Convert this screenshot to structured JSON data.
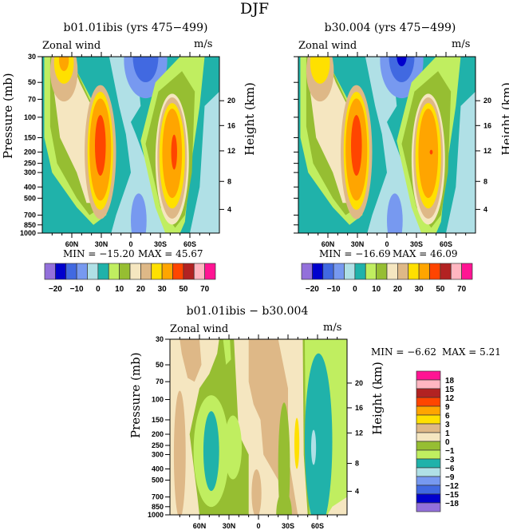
{
  "main_title": "DJF",
  "panels": [
    {
      "id": "p1",
      "title": "b01.01ibis (yrs 475−499)",
      "variable": "Zonal wind",
      "units": "m/s",
      "min_label": "MIN = −15.20",
      "max_label": "MAX =  45.67"
    },
    {
      "id": "p2",
      "title": "b30.004 (yrs 475−499)",
      "variable": "Zonal wind",
      "units": "m/s",
      "min_label": "MIN = −16.69",
      "max_label": "MAX =  46.09"
    },
    {
      "id": "p3",
      "title": "b01.01ibis − b30.004",
      "variable": "Zonal wind",
      "units": "m/s",
      "min_label": "MIN =  −6.62",
      "max_label": "MAX =   5.21"
    }
  ],
  "axes": {
    "ylabel_left": "Pressure (mb)",
    "ylabel_right": "Height (km)"
  },
  "chart_data": [
    {
      "type": "heatmap",
      "title": "b01.01ibis (yrs 475-499)",
      "subtitle": "Zonal wind (m/s), DJF",
      "xlabel": "Latitude",
      "ylabel": "Pressure (mb)",
      "ylabel_right": "Height (km)",
      "x_ticks": [
        "60N",
        "30N",
        "0",
        "30S",
        "60S"
      ],
      "x_tick_values": [
        60,
        30,
        0,
        -30,
        -60
      ],
      "xlim": [
        90,
        -90
      ],
      "y_ticks": [
        30,
        50,
        70,
        100,
        150,
        200,
        250,
        300,
        400,
        500,
        700,
        850,
        1000
      ],
      "ylim": [
        1000,
        30
      ],
      "y_scale": "log",
      "y_right_ticks": [
        4,
        8,
        12,
        16,
        20
      ],
      "min": -15.2,
      "max": 45.67,
      "colorbar_labels": [
        "-20",
        "-10",
        "0",
        "10",
        "20",
        "30",
        "50",
        "70"
      ],
      "features": [
        {
          "kind": "jet",
          "lat": 30,
          "p": 180,
          "peak_level": "50-70"
        },
        {
          "kind": "jet",
          "lat": -42,
          "p": 190,
          "peak_level": "50-70"
        },
        {
          "kind": "easterly_min",
          "lat": -15,
          "p": 30,
          "level": "-10 to -15"
        }
      ]
    },
    {
      "type": "heatmap",
      "title": "b30.004 (yrs 475-499)",
      "subtitle": "Zonal wind (m/s), DJF",
      "xlabel": "Latitude",
      "ylabel": "Pressure (mb)",
      "ylabel_right": "Height (km)",
      "x_ticks": [
        "60N",
        "30N",
        "0",
        "30S",
        "60S"
      ],
      "x_tick_values": [
        60,
        30,
        0,
        -30,
        -60
      ],
      "xlim": [
        90,
        -90
      ],
      "y_ticks": [
        30,
        50,
        70,
        100,
        150,
        200,
        250,
        300,
        400,
        500,
        700,
        850,
        1000
      ],
      "ylim": [
        1000,
        30
      ],
      "y_scale": "log",
      "y_right_ticks": [
        4,
        8,
        12,
        16,
        20
      ],
      "min": -16.69,
      "max": 46.09,
      "colorbar_labels": [
        "-20",
        "-10",
        "0",
        "10",
        "20",
        "30",
        "50",
        "70"
      ],
      "features": [
        {
          "kind": "jet",
          "lat": 30,
          "p": 180,
          "peak_level": "50-70"
        },
        {
          "kind": "jet",
          "lat": -42,
          "p": 200,
          "peak_level": "50"
        },
        {
          "kind": "easterly_min",
          "lat": -15,
          "p": 30,
          "level": "-15 to -20"
        }
      ]
    },
    {
      "type": "heatmap",
      "title": "b01.01ibis - b30.004",
      "subtitle": "Zonal wind difference (m/s), DJF",
      "xlabel": "Latitude",
      "ylabel": "Pressure (mb)",
      "ylabel_right": "Height (km)",
      "x_ticks": [
        "60N",
        "30N",
        "0",
        "30S",
        "60S"
      ],
      "x_tick_values": [
        60,
        30,
        0,
        -30,
        -60
      ],
      "xlim": [
        90,
        -90
      ],
      "y_ticks": [
        30,
        50,
        70,
        100,
        150,
        200,
        250,
        300,
        400,
        500,
        700,
        850,
        1000
      ],
      "ylim": [
        1000,
        30
      ],
      "y_scale": "log",
      "y_right_ticks": [
        4,
        8,
        12,
        16,
        20
      ],
      "min": -6.62,
      "max": 5.21,
      "colorbar_labels": [
        "18",
        "15",
        "12",
        "9",
        "6",
        "3",
        "1",
        "0",
        "-1",
        "-3",
        "-6",
        "-9",
        "-12",
        "-15",
        "-18"
      ],
      "features": [
        {
          "kind": "negative_min",
          "lat": 45,
          "p": 280,
          "level": "-3 to -6"
        },
        {
          "kind": "negative_min",
          "lat": -55,
          "p": 250,
          "level": "-6 to -9"
        },
        {
          "kind": "positive_max",
          "lat": -38,
          "p": 250,
          "level": "3 to 6"
        }
      ]
    }
  ],
  "colorbar_main": {
    "colors": [
      "#9370db",
      "#0000cd",
      "#4169e1",
      "#7799f0",
      "#b0e0e6",
      "#20b2aa",
      "#c0ee60",
      "#96be32",
      "#f5e6c0",
      "#deb887",
      "#ffe000",
      "#ffa500",
      "#ff4500",
      "#b22222",
      "#ffb6c1",
      "#ff1493"
    ],
    "labels": [
      "−20",
      "−10",
      "0",
      "10",
      "20",
      "30",
      "50",
      "70"
    ]
  },
  "colorbar_diff": {
    "colors_top_to_bottom": [
      "#ff1493",
      "#ffb6c1",
      "#b22222",
      "#ff4500",
      "#ffa500",
      "#ffe000",
      "#deb887",
      "#f5e6c0",
      "#96be32",
      "#c0ee60",
      "#20b2aa",
      "#b0e0e6",
      "#7799f0",
      "#4169e1",
      "#0000cd",
      "#9370db"
    ],
    "labels": [
      "18",
      "15",
      "12",
      "9",
      "6",
      "3",
      "1",
      "0",
      "−1",
      "−3",
      "−6",
      "−9",
      "−12",
      "−15",
      "−18"
    ]
  }
}
